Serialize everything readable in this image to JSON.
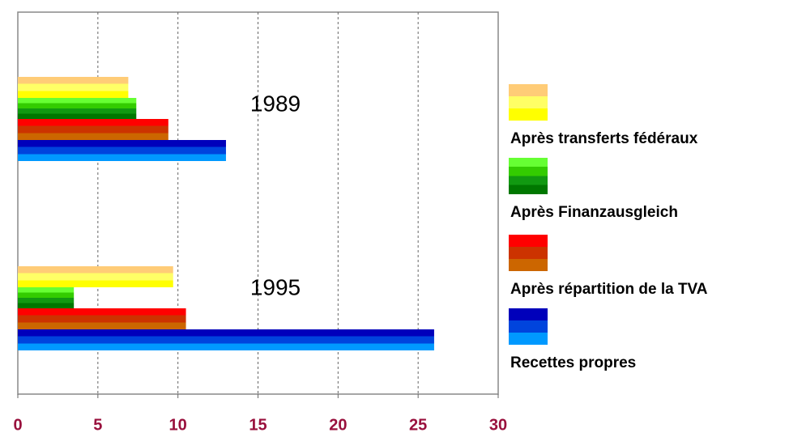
{
  "chart_data": {
    "type": "barh",
    "categories": [
      "1989",
      "1995"
    ],
    "series": [
      {
        "name": "Après transferts fédéraux",
        "color": [
          "#ffcc77",
          "#ffff66",
          "#ffff00"
        ],
        "values": [
          6.9,
          9.7
        ]
      },
      {
        "name": "Après Finanzausgleich",
        "color": [
          "#66ff33",
          "#33cc00",
          "#119911",
          "#007700"
        ],
        "values": [
          7.4,
          3.5
        ]
      },
      {
        "name": "Après répartition de la TVA",
        "color": [
          "#ff0000",
          "#cc3300",
          "#cc6600"
        ],
        "values": [
          9.4,
          10.5
        ]
      },
      {
        "name": "Recettes propres",
        "color": [
          "#0000bb",
          "#0044dd",
          "#0099ff"
        ],
        "values": [
          13.0,
          26.0
        ]
      }
    ],
    "xlim": [
      0,
      30
    ],
    "xticks": [
      0,
      5,
      10,
      15,
      20,
      25,
      30
    ],
    "grid": true,
    "legend": "right"
  }
}
